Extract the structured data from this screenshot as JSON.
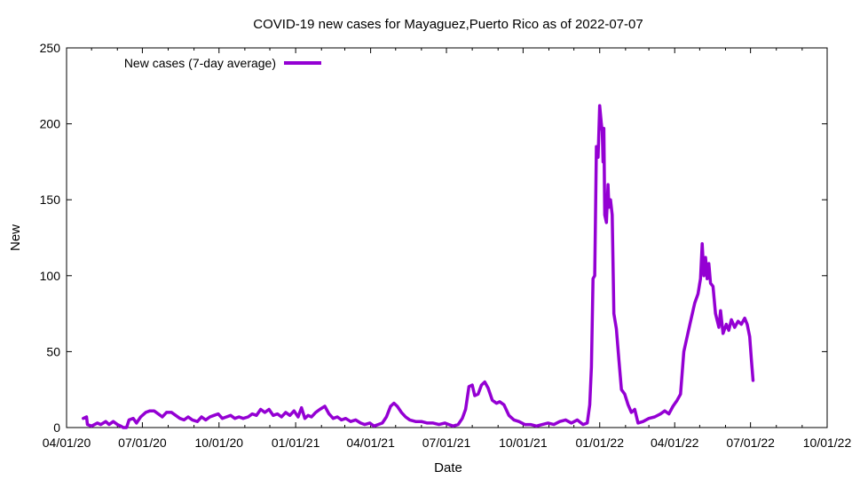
{
  "chart_data": {
    "type": "line",
    "title": "COVID-19 new cases for Mayaguez,Puerto Rico as of 2022-07-07",
    "xlabel": "Date",
    "ylabel": "New",
    "xlim": [
      "2020-04-01",
      "2022-10-01"
    ],
    "ylim": [
      0,
      250
    ],
    "x_ticks": [
      "04/01/20",
      "07/01/20",
      "10/01/20",
      "01/01/21",
      "04/01/21",
      "07/01/21",
      "10/01/21",
      "01/01/22",
      "04/01/22",
      "07/01/22",
      "10/01/22"
    ],
    "y_ticks": [
      0,
      50,
      100,
      150,
      200,
      250
    ],
    "grid": false,
    "legend_position": "top-left",
    "series": [
      {
        "name": "New cases (7-day average)",
        "color": "#9400d3",
        "points": [
          [
            "2020-04-21",
            6
          ],
          [
            "2020-04-25",
            7
          ],
          [
            "2020-04-26",
            2
          ],
          [
            "2020-05-01",
            1
          ],
          [
            "2020-05-08",
            3
          ],
          [
            "2020-05-12",
            2
          ],
          [
            "2020-05-18",
            4
          ],
          [
            "2020-05-22",
            2
          ],
          [
            "2020-05-27",
            4
          ],
          [
            "2020-06-01",
            2
          ],
          [
            "2020-06-05",
            1
          ],
          [
            "2020-06-08",
            0
          ],
          [
            "2020-06-12",
            0
          ],
          [
            "2020-06-15",
            5
          ],
          [
            "2020-06-20",
            6
          ],
          [
            "2020-06-24",
            3
          ],
          [
            "2020-06-29",
            7
          ],
          [
            "2020-07-05",
            10
          ],
          [
            "2020-07-10",
            11
          ],
          [
            "2020-07-15",
            11
          ],
          [
            "2020-07-20",
            9
          ],
          [
            "2020-07-25",
            7
          ],
          [
            "2020-07-30",
            10
          ],
          [
            "2020-08-05",
            10
          ],
          [
            "2020-08-10",
            8
          ],
          [
            "2020-08-15",
            6
          ],
          [
            "2020-08-20",
            5
          ],
          [
            "2020-08-25",
            7
          ],
          [
            "2020-08-30",
            5
          ],
          [
            "2020-09-05",
            4
          ],
          [
            "2020-09-10",
            7
          ],
          [
            "2020-09-15",
            5
          ],
          [
            "2020-09-20",
            7
          ],
          [
            "2020-09-25",
            8
          ],
          [
            "2020-09-30",
            9
          ],
          [
            "2020-10-05",
            6
          ],
          [
            "2020-10-10",
            7
          ],
          [
            "2020-10-15",
            8
          ],
          [
            "2020-10-20",
            6
          ],
          [
            "2020-10-25",
            7
          ],
          [
            "2020-10-30",
            6
          ],
          [
            "2020-11-05",
            7
          ],
          [
            "2020-11-10",
            9
          ],
          [
            "2020-11-15",
            8
          ],
          [
            "2020-11-20",
            12
          ],
          [
            "2020-11-25",
            10
          ],
          [
            "2020-11-30",
            12
          ],
          [
            "2020-12-05",
            8
          ],
          [
            "2020-12-10",
            9
          ],
          [
            "2020-12-15",
            7
          ],
          [
            "2020-12-20",
            10
          ],
          [
            "2020-12-25",
            8
          ],
          [
            "2020-12-30",
            11
          ],
          [
            "2021-01-04",
            7
          ],
          [
            "2021-01-08",
            13
          ],
          [
            "2021-01-12",
            6
          ],
          [
            "2021-01-16",
            8
          ],
          [
            "2021-01-20",
            7
          ],
          [
            "2021-01-25",
            10
          ],
          [
            "2021-01-30",
            12
          ],
          [
            "2021-02-05",
            14
          ],
          [
            "2021-02-10",
            9
          ],
          [
            "2021-02-15",
            6
          ],
          [
            "2021-02-20",
            7
          ],
          [
            "2021-02-25",
            5
          ],
          [
            "2021-03-02",
            6
          ],
          [
            "2021-03-08",
            4
          ],
          [
            "2021-03-14",
            5
          ],
          [
            "2021-03-20",
            3
          ],
          [
            "2021-03-25",
            2
          ],
          [
            "2021-03-31",
            3
          ],
          [
            "2021-04-05",
            1
          ],
          [
            "2021-04-10",
            2
          ],
          [
            "2021-04-15",
            3
          ],
          [
            "2021-04-20",
            7
          ],
          [
            "2021-04-25",
            14
          ],
          [
            "2021-04-29",
            16
          ],
          [
            "2021-05-03",
            14
          ],
          [
            "2021-05-08",
            10
          ],
          [
            "2021-05-13",
            7
          ],
          [
            "2021-05-18",
            5
          ],
          [
            "2021-05-25",
            4
          ],
          [
            "2021-06-01",
            4
          ],
          [
            "2021-06-08",
            3
          ],
          [
            "2021-06-15",
            3
          ],
          [
            "2021-06-22",
            2
          ],
          [
            "2021-06-29",
            3
          ],
          [
            "2021-07-04",
            2
          ],
          [
            "2021-07-09",
            1
          ],
          [
            "2021-07-15",
            2
          ],
          [
            "2021-07-20",
            6
          ],
          [
            "2021-07-24",
            12
          ],
          [
            "2021-07-28",
            27
          ],
          [
            "2021-08-01",
            28
          ],
          [
            "2021-08-04",
            21
          ],
          [
            "2021-08-08",
            22
          ],
          [
            "2021-08-12",
            28
          ],
          [
            "2021-08-16",
            30
          ],
          [
            "2021-08-20",
            26
          ],
          [
            "2021-08-25",
            18
          ],
          [
            "2021-08-30",
            16
          ],
          [
            "2021-09-03",
            17
          ],
          [
            "2021-09-08",
            15
          ],
          [
            "2021-09-14",
            8
          ],
          [
            "2021-09-20",
            5
          ],
          [
            "2021-09-26",
            4
          ],
          [
            "2021-10-03",
            2
          ],
          [
            "2021-10-10",
            2
          ],
          [
            "2021-10-17",
            1
          ],
          [
            "2021-10-24",
            2
          ],
          [
            "2021-10-31",
            3
          ],
          [
            "2021-11-07",
            2
          ],
          [
            "2021-11-14",
            4
          ],
          [
            "2021-11-21",
            5
          ],
          [
            "2021-11-28",
            3
          ],
          [
            "2021-12-05",
            5
          ],
          [
            "2021-12-12",
            2
          ],
          [
            "2021-12-17",
            3
          ],
          [
            "2021-12-20",
            15
          ],
          [
            "2021-12-22",
            40
          ],
          [
            "2021-12-24",
            98
          ],
          [
            "2021-12-26",
            100
          ],
          [
            "2021-12-28",
            185
          ],
          [
            "2021-12-30",
            178
          ],
          [
            "2022-01-01",
            212
          ],
          [
            "2022-01-03",
            200
          ],
          [
            "2022-01-04",
            195
          ],
          [
            "2022-01-05",
            175
          ],
          [
            "2022-01-06",
            197
          ],
          [
            "2022-01-07",
            140
          ],
          [
            "2022-01-09",
            135
          ],
          [
            "2022-01-11",
            160
          ],
          [
            "2022-01-12",
            145
          ],
          [
            "2022-01-14",
            150
          ],
          [
            "2022-01-16",
            140
          ],
          [
            "2022-01-18",
            75
          ],
          [
            "2022-01-21",
            65
          ],
          [
            "2022-01-24",
            45
          ],
          [
            "2022-01-27",
            25
          ],
          [
            "2022-01-31",
            22
          ],
          [
            "2022-02-04",
            15
          ],
          [
            "2022-02-08",
            10
          ],
          [
            "2022-02-12",
            12
          ],
          [
            "2022-02-16",
            3
          ],
          [
            "2022-02-22",
            4
          ],
          [
            "2022-03-01",
            6
          ],
          [
            "2022-03-08",
            7
          ],
          [
            "2022-03-15",
            9
          ],
          [
            "2022-03-20",
            11
          ],
          [
            "2022-03-25",
            9
          ],
          [
            "2022-03-30",
            14
          ],
          [
            "2022-04-04",
            18
          ],
          [
            "2022-04-08",
            22
          ],
          [
            "2022-04-12",
            50
          ],
          [
            "2022-04-16",
            60
          ],
          [
            "2022-04-20",
            70
          ],
          [
            "2022-04-25",
            82
          ],
          [
            "2022-04-29",
            88
          ],
          [
            "2022-05-02",
            98
          ],
          [
            "2022-05-04",
            121
          ],
          [
            "2022-05-06",
            100
          ],
          [
            "2022-05-08",
            112
          ],
          [
            "2022-05-10",
            98
          ],
          [
            "2022-05-12",
            108
          ],
          [
            "2022-05-14",
            95
          ],
          [
            "2022-05-17",
            93
          ],
          [
            "2022-05-20",
            75
          ],
          [
            "2022-05-24",
            66
          ],
          [
            "2022-05-26",
            77
          ],
          [
            "2022-05-29",
            62
          ],
          [
            "2022-06-02",
            68
          ],
          [
            "2022-06-05",
            64
          ],
          [
            "2022-06-08",
            71
          ],
          [
            "2022-06-12",
            66
          ],
          [
            "2022-06-16",
            70
          ],
          [
            "2022-06-20",
            68
          ],
          [
            "2022-06-24",
            72
          ],
          [
            "2022-06-27",
            68
          ],
          [
            "2022-06-30",
            60
          ],
          [
            "2022-07-02",
            45
          ],
          [
            "2022-07-04",
            31
          ]
        ]
      }
    ]
  }
}
